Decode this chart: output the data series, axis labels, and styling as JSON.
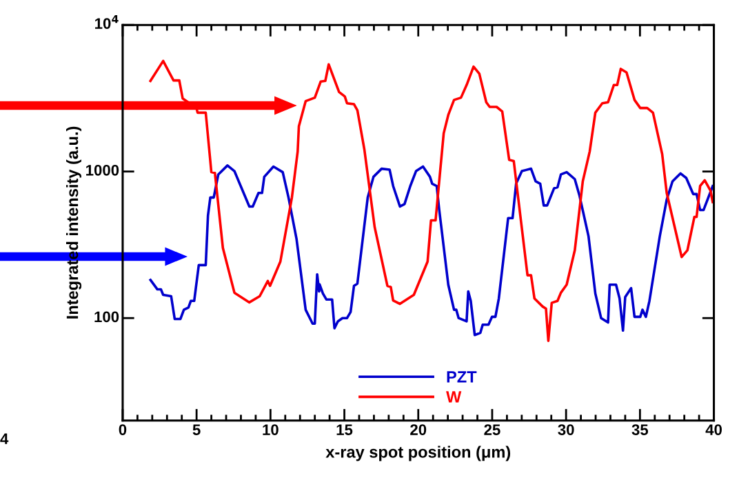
{
  "chart_data": {
    "type": "line",
    "xlabel": "x-ray spot position (μm)",
    "ylabel": "Integrated intensity (a.u.)",
    "xlim": [
      0,
      40
    ],
    "xticks": [
      0,
      5,
      10,
      15,
      20,
      25,
      30,
      35,
      40
    ],
    "ylim": [
      20,
      10000
    ],
    "yticks": [
      {
        "value": 10000,
        "label": "10$^{4}$"
      },
      1000,
      100
    ],
    "log": "y",
    "grid": false,
    "legend": "bottom",
    "marker": "none",
    "line_style": "solid",
    "annotations": [
      "4"
    ],
    "series": [
      {
        "name": "PZT",
        "color": "#0000cc",
        "x": [
          1.88,
          2.35,
          2.59,
          2.74,
          3.28,
          3.52,
          3.91,
          4.14,
          4.45,
          4.61,
          4.84,
          5.15,
          5.62,
          5.77,
          5.93,
          6.16,
          6.47,
          7.09,
          7.56,
          8.57,
          8.8,
          9.19,
          9.43,
          9.58,
          10.2,
          10.83,
          11.22,
          11.76,
          12.38,
          12.85,
          13.0,
          13.16,
          13.29,
          13.32,
          13.55,
          13.78,
          14.17,
          14.33,
          14.56,
          14.87,
          15.18,
          15.42,
          15.65,
          15.88,
          16.58,
          16.97,
          17.52,
          18.06,
          18.3,
          18.76,
          19.07,
          19.46,
          19.85,
          20.32,
          20.79,
          20.94,
          21.25,
          21.41,
          22.03,
          22.42,
          22.57,
          22.73,
          23.27,
          23.38,
          23.55,
          23.82,
          24.2,
          24.36,
          24.75,
          24.99,
          25.22,
          25.45,
          26.08,
          26.38,
          26.62,
          27.01,
          27.63,
          27.94,
          28.25,
          28.49,
          28.72,
          29.19,
          29.42,
          29.65,
          30.04,
          30.59,
          30.9,
          31.52,
          31.98,
          32.37,
          32.84,
          32.95,
          33.38,
          33.62,
          33.85,
          34.0,
          34.4,
          34.63,
          35.02,
          35.17,
          35.4,
          35.64,
          36.34,
          36.81,
          37.2,
          37.74,
          38.13,
          38.6,
          38.83,
          39.07,
          39.3,
          39.92
        ],
        "values": [
          182,
          157,
          157,
          144,
          141,
          98.6,
          98.6,
          114,
          118,
          131,
          131,
          230,
          230,
          499,
          665,
          665,
          955,
          1100,
          1007,
          577,
          577,
          714,
          714,
          920,
          1081,
          990,
          665,
          348,
          114,
          91.7,
          91.7,
          199,
          152,
          170,
          147,
          134,
          134,
          85.3,
          95,
          100,
          100,
          110,
          166,
          172,
          665,
          920,
          1045,
          1030,
          796,
          577,
          600,
          796,
          1007,
          1081,
          920,
          826,
          796,
          556,
          169,
          114,
          114,
          100,
          95,
          152,
          131,
          76.6,
          79.4,
          90.2,
          90.2,
          102,
          102,
          136,
          481,
          481,
          826,
          1007,
          1045,
          857,
          826,
          587,
          587,
          769,
          780,
          955,
          990,
          887,
          690,
          361,
          147,
          100,
          93.3,
          169,
          169,
          136,
          82.2,
          139,
          160,
          102,
          102,
          114,
          102,
          131,
          361,
          643,
          857,
          970,
          904,
          702,
          702,
          546,
          546,
          796
        ]
      },
      {
        "name": "W",
        "color": "#ff0000",
        "x": [
          1.88,
          2.74,
          3.44,
          3.83,
          4.06,
          4.99,
          5.07,
          5.62,
          6.0,
          6.24,
          6.78,
          7.56,
          8.57,
          9.27,
          9.82,
          9.97,
          10.67,
          11.45,
          11.84,
          11.92,
          12.38,
          13.0,
          13.4,
          13.71,
          13.94,
          14.64,
          15.03,
          15.18,
          15.65,
          15.88,
          16.35,
          17.05,
          17.91,
          18.14,
          18.3,
          18.76,
          19.7,
          20.63,
          20.86,
          21.17,
          21.72,
          22.03,
          22.42,
          22.89,
          23.27,
          23.74,
          24.13,
          24.6,
          24.83,
          25.3,
          25.68,
          26.15,
          26.46,
          27.39,
          27.63,
          27.86,
          28.41,
          28.64,
          28.8,
          29.03,
          29.42,
          29.65,
          30.04,
          30.59,
          31.13,
          31.6,
          31.98,
          32.45,
          32.84,
          33.23,
          33.46,
          33.7,
          34.09,
          34.63,
          35.02,
          35.49,
          35.88,
          36.5,
          36.81,
          37.82,
          38.21,
          38.68,
          38.83,
          39.07,
          39.38,
          39.77,
          39.92
        ],
        "values": [
          4150,
          5680,
          4180,
          4180,
          3150,
          2710,
          2520,
          2520,
          990,
          978,
          301,
          149,
          128,
          141,
          179,
          166,
          243,
          665,
          1368,
          2030,
          3020,
          3190,
          4110,
          4150,
          5380,
          3490,
          3250,
          2920,
          2880,
          2620,
          1420,
          417,
          166,
          163,
          132,
          125,
          144,
          243,
          464,
          464,
          1820,
          2430,
          3080,
          3190,
          3890,
          5190,
          4650,
          2970,
          2760,
          2760,
          2570,
          1200,
          1180,
          196,
          196,
          136,
          120,
          116,
          70,
          127,
          131,
          149,
          169,
          290,
          857,
          1370,
          2520,
          2920,
          2970,
          3890,
          3890,
          5010,
          4740,
          3080,
          2710,
          2710,
          2520,
          1320,
          714,
          261,
          290,
          490,
          490,
          796,
          871,
          741,
          619
        ]
      }
    ]
  }
}
